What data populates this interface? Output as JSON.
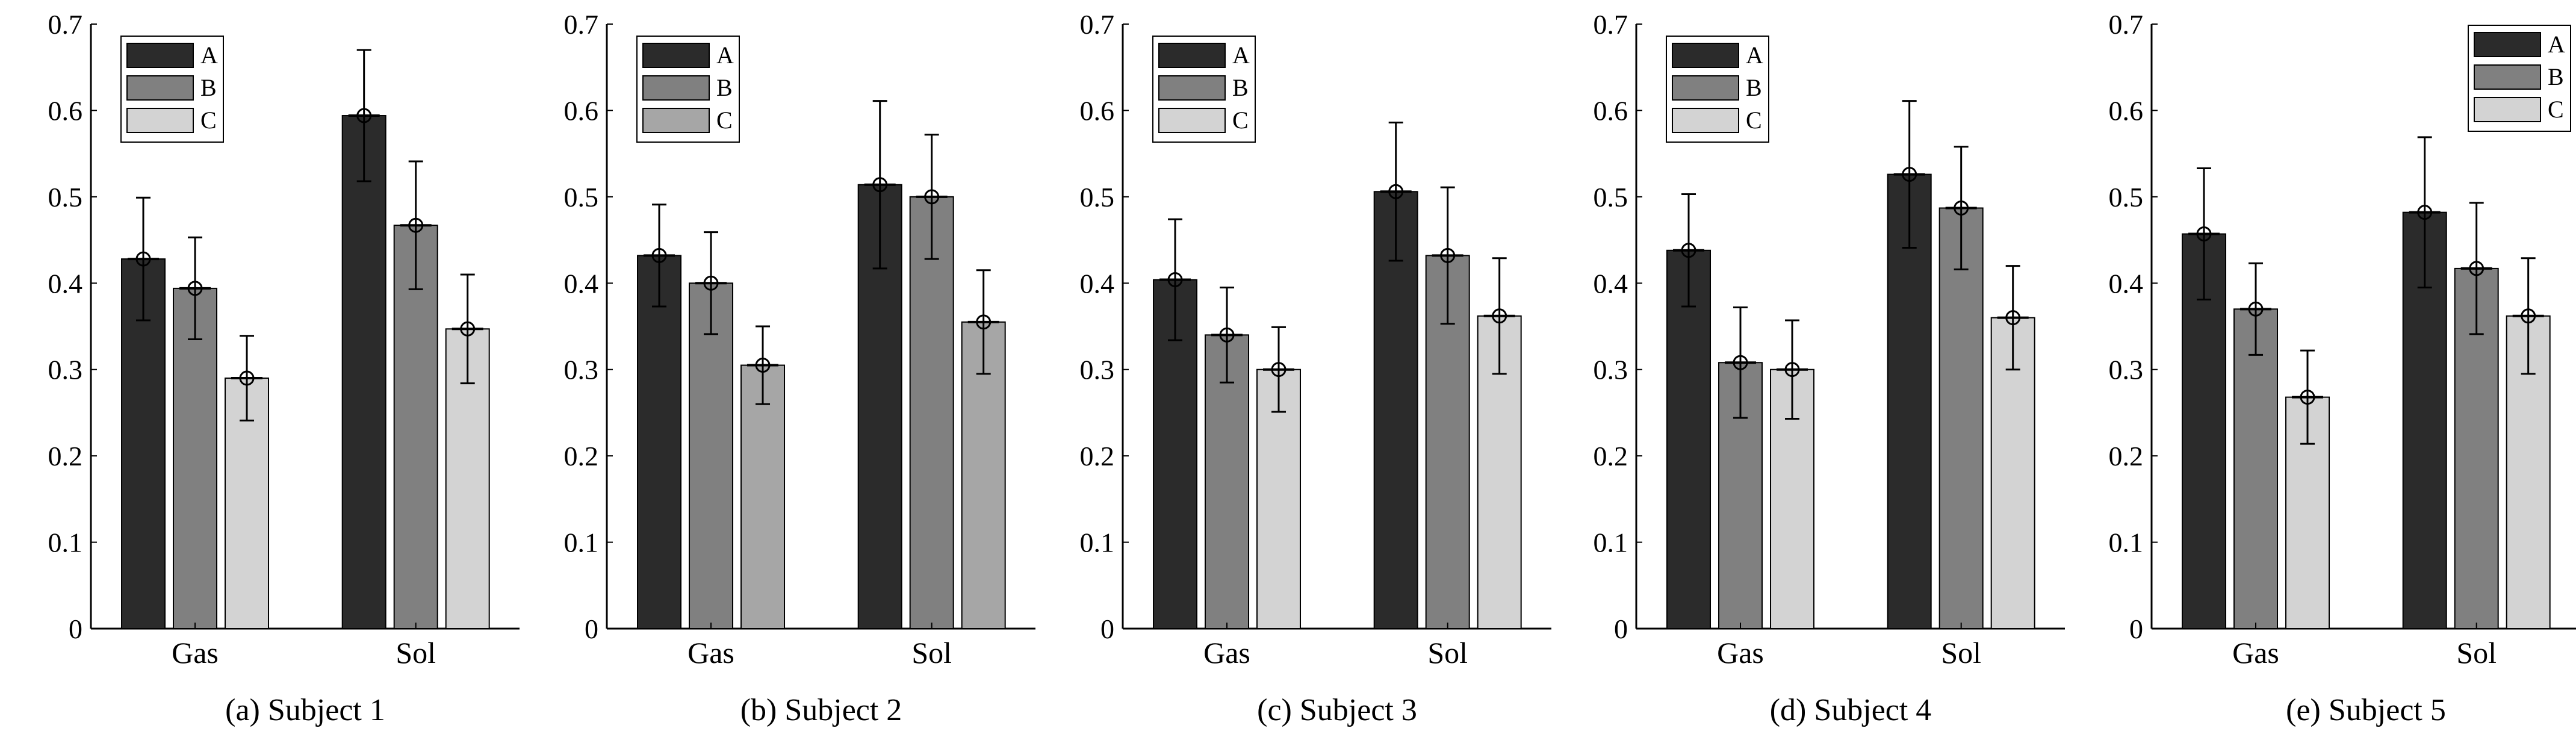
{
  "figure": {
    "background": "#ffffff"
  },
  "chart_data": [
    {
      "type": "bar",
      "caption": "(a) Subject 1",
      "categories": [
        "Gas",
        "Sol"
      ],
      "ylim": [
        0,
        0.7
      ],
      "yticks": [
        "0",
        "0.1",
        "0.2",
        "0.3",
        "0.4",
        "0.5",
        "0.6",
        "0.7"
      ],
      "legend_position": "top-left",
      "series": [
        {
          "name": "A",
          "color": "#2b2b2b",
          "values": [
            0.428,
            0.594
          ],
          "errors": [
            0.071,
            0.076
          ]
        },
        {
          "name": "B",
          "color": "#808080",
          "values": [
            0.394,
            0.467
          ],
          "errors": [
            0.059,
            0.074
          ]
        },
        {
          "name": "C",
          "color": "#d3d3d3",
          "values": [
            0.29,
            0.347
          ],
          "errors": [
            0.049,
            0.063
          ]
        }
      ]
    },
    {
      "type": "bar",
      "caption": "(b) Subject 2",
      "categories": [
        "Gas",
        "Sol"
      ],
      "ylim": [
        0,
        0.7
      ],
      "yticks": [
        "0",
        "0.1",
        "0.2",
        "0.3",
        "0.4",
        "0.5",
        "0.6",
        "0.7"
      ],
      "legend_position": "top-left",
      "series": [
        {
          "name": "A",
          "color": "#2b2b2b",
          "values": [
            0.432,
            0.514
          ],
          "errors": [
            0.059,
            0.097
          ]
        },
        {
          "name": "B",
          "color": "#808080",
          "values": [
            0.4,
            0.5
          ],
          "errors": [
            0.059,
            0.072
          ]
        },
        {
          "name": "C",
          "color": "#a6a6a6",
          "values": [
            0.305,
            0.355
          ],
          "errors": [
            0.045,
            0.06
          ]
        }
      ]
    },
    {
      "type": "bar",
      "caption": "(c) Subject 3",
      "categories": [
        "Gas",
        "Sol"
      ],
      "ylim": [
        0,
        0.7
      ],
      "yticks": [
        "0",
        "0.1",
        "0.2",
        "0.3",
        "0.4",
        "0.5",
        "0.6",
        "0.7"
      ],
      "legend_position": "top-left",
      "series": [
        {
          "name": "A",
          "color": "#2b2b2b",
          "values": [
            0.404,
            0.506
          ],
          "errors": [
            0.07,
            0.08
          ]
        },
        {
          "name": "B",
          "color": "#808080",
          "values": [
            0.34,
            0.432
          ],
          "errors": [
            0.055,
            0.079
          ]
        },
        {
          "name": "C",
          "color": "#d3d3d3",
          "values": [
            0.3,
            0.362
          ],
          "errors": [
            0.049,
            0.067
          ]
        }
      ]
    },
    {
      "type": "bar",
      "caption": "(d) Subject 4",
      "categories": [
        "Gas",
        "Sol"
      ],
      "ylim": [
        0,
        0.7
      ],
      "yticks": [
        "0",
        "0.1",
        "0.2",
        "0.3",
        "0.4",
        "0.5",
        "0.6",
        "0.7"
      ],
      "legend_position": "top-left",
      "series": [
        {
          "name": "A",
          "color": "#2b2b2b",
          "values": [
            0.438,
            0.526
          ],
          "errors": [
            0.065,
            0.085
          ]
        },
        {
          "name": "B",
          "color": "#808080",
          "values": [
            0.308,
            0.487
          ],
          "errors": [
            0.064,
            0.071
          ]
        },
        {
          "name": "C",
          "color": "#d3d3d3",
          "values": [
            0.3,
            0.36
          ],
          "errors": [
            0.057,
            0.06
          ]
        }
      ]
    },
    {
      "type": "bar",
      "caption": "(e) Subject 5",
      "categories": [
        "Gas",
        "Sol"
      ],
      "ylim": [
        0,
        0.7
      ],
      "yticks": [
        "0",
        "0.1",
        "0.2",
        "0.3",
        "0.4",
        "0.5",
        "0.6",
        "0.7"
      ],
      "legend_position": "top-right",
      "series": [
        {
          "name": "A",
          "color": "#2b2b2b",
          "values": [
            0.457,
            0.482
          ],
          "errors": [
            0.076,
            0.087
          ]
        },
        {
          "name": "B",
          "color": "#808080",
          "values": [
            0.37,
            0.417
          ],
          "errors": [
            0.053,
            0.076
          ]
        },
        {
          "name": "C",
          "color": "#d3d3d3",
          "values": [
            0.268,
            0.362
          ],
          "errors": [
            0.054,
            0.067
          ]
        }
      ]
    }
  ]
}
